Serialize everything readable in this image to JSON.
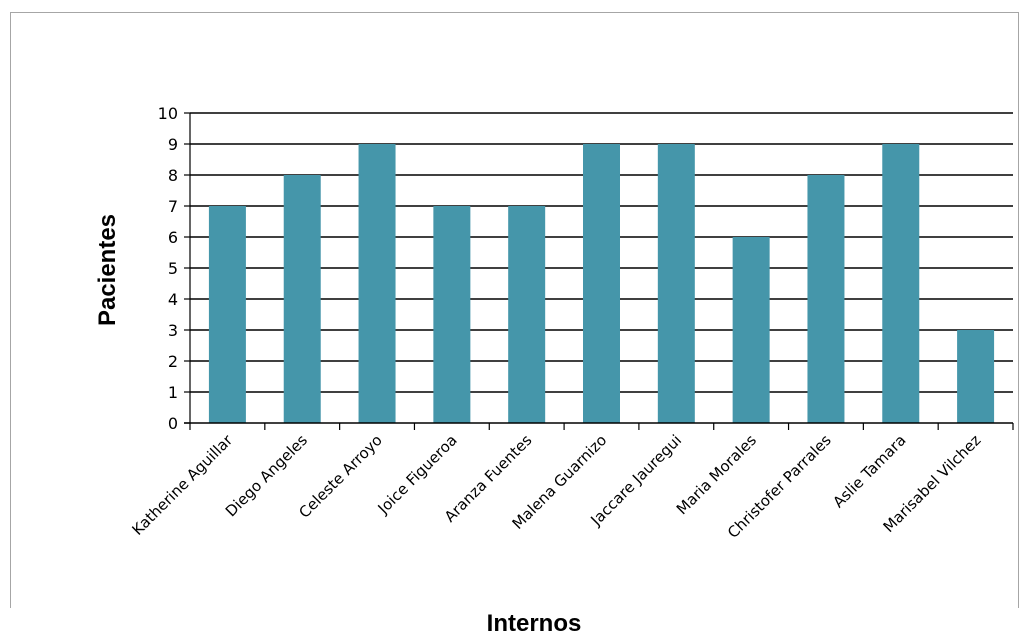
{
  "chart_data": {
    "type": "bar",
    "title": "",
    "xlabel": "Internos",
    "ylabel": "Pacientes",
    "categories": [
      "Katherine Aguillar",
      "Diego Angeles",
      "Celeste Arroyo",
      "Joice Figueroa",
      "Aranza Fuentes",
      "Malena Guarnizo",
      "Jaccare Jauregui",
      "Maria Morales",
      "Christofer Parrales",
      "Aslie Tamara",
      "Marisabel Vilchez"
    ],
    "values": [
      7,
      8,
      9,
      7,
      7,
      9,
      9,
      6,
      8,
      9,
      3
    ],
    "ylim": [
      0,
      10
    ],
    "yticks": [
      "0",
      "1",
      "2",
      "3",
      "4",
      "5",
      "6",
      "7",
      "8",
      "9",
      "10"
    ],
    "grid": true,
    "legend": "none",
    "bar_color": "#4596aa"
  }
}
